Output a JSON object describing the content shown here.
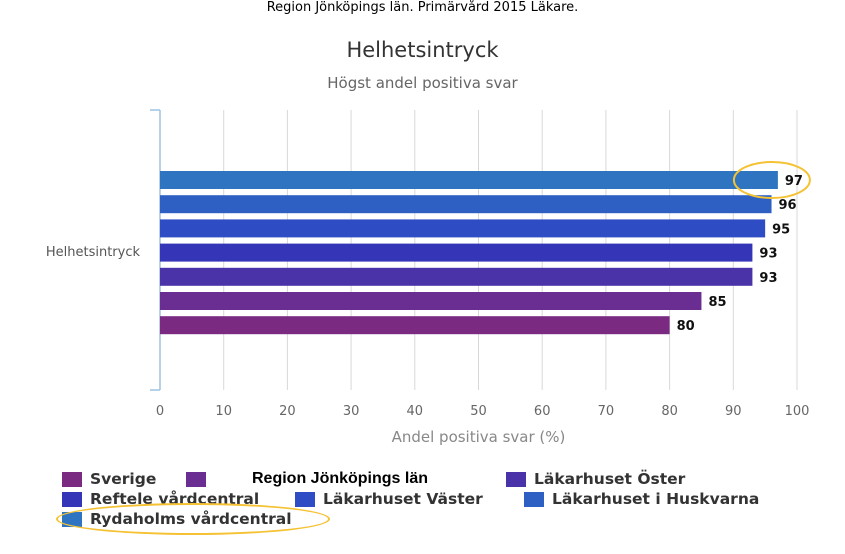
{
  "caption": "Region Jönköpings län. Primärvård 2015 Läkare.",
  "chart_data": {
    "type": "bar",
    "orientation": "horizontal",
    "title": "Helhetsintryck",
    "subtitle": "Högst andel positiva svar",
    "categories": [
      "Helhetsintryck"
    ],
    "xlabel": "Andel positiva svar (%)",
    "xlim": [
      0,
      100
    ],
    "xticks": [
      "0",
      "10",
      "20",
      "30",
      "40",
      "50",
      "60",
      "70",
      "80",
      "90",
      "100"
    ],
    "grid": true,
    "legend_position": "bottom",
    "series": [
      {
        "name": "Rydaholms vårdcentral",
        "value": 97,
        "color": "#2e74c0"
      },
      {
        "name": "Läkarhuset i Huskvarna",
        "value": 96,
        "color": "#2e60c4"
      },
      {
        "name": "Läkarhuset Väster",
        "value": 95,
        "color": "#2e4cc4"
      },
      {
        "name": "Reftele vårdcentral",
        "value": 93,
        "color": "#3535b8"
      },
      {
        "name": "Läkarhuset Öster",
        "value": 93,
        "color": "#4a33a8"
      },
      {
        "name": "Region Jönköpings län",
        "value": 85,
        "color": "#6a2e92"
      },
      {
        "name": "Sverige",
        "value": 80,
        "color": "#7a2a80"
      }
    ],
    "legend": [
      {
        "name": "Sverige",
        "color": "#7a2a80"
      },
      {
        "name": "Region Jönköpings län",
        "color": "#6a2e92"
      },
      {
        "name": "Läkarhuset Öster",
        "color": "#4a33a8"
      },
      {
        "name": "Reftele vårdcentral",
        "color": "#3535b8"
      },
      {
        "name": "Läkarhuset Väster",
        "color": "#2e4cc4"
      },
      {
        "name": "Läkarhuset i Huskvarna",
        "color": "#2e60c4"
      },
      {
        "name": "Rydaholms vårdcentral",
        "color": "#2e74c0"
      }
    ],
    "highlighted": [
      "Rydaholms vårdcentral"
    ],
    "highlight_color": "#f5c234"
  }
}
